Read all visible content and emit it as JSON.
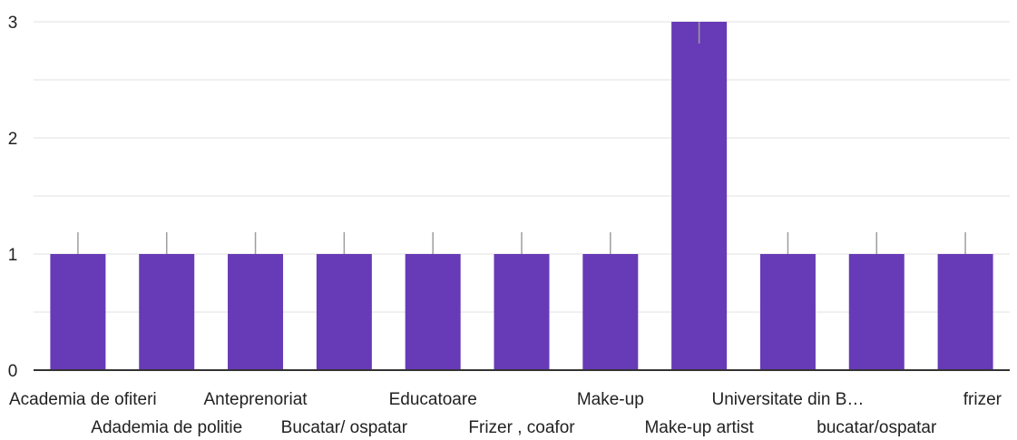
{
  "chart_data": {
    "type": "bar",
    "categories": [
      "Academia de ofiteri",
      "Adademia de politie",
      "Antepreno­riat",
      "Bucatar/ ospatar",
      "Educatoare",
      "Frizer , coafor",
      "Make-up",
      "Make-up artist",
      "Universitate din B…",
      "bucatar/ospatar",
      "frizer"
    ],
    "values": [
      1,
      1,
      1,
      1,
      1,
      1,
      1,
      3,
      1,
      1,
      1
    ],
    "ylim": [
      0,
      3
    ],
    "yticks": [
      "0",
      "1",
      "2",
      "3"
    ],
    "grid": true,
    "colors": {
      "bar": "#673AB7",
      "whisker": "#9E9E9E",
      "grid": "#EBEBEB",
      "axis": "#333333"
    }
  }
}
